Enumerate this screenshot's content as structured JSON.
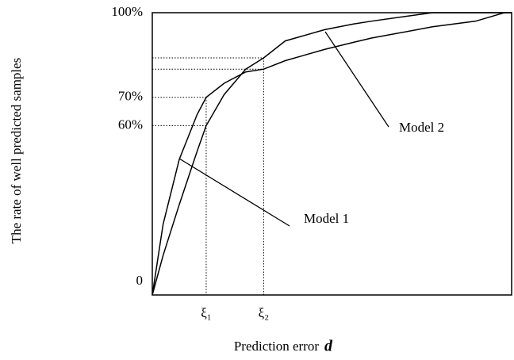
{
  "chart_data": {
    "type": "line",
    "y_label": "The rate of well predicted samples",
    "x_label": "Prediction error",
    "x_symbol": "d",
    "x": [
      0,
      3,
      7.5,
      12.5,
      15,
      20,
      26,
      31,
      37,
      48,
      56,
      61,
      78,
      90,
      98,
      100
    ],
    "series": [
      {
        "name": "Model 1",
        "color": "#000000",
        "values": [
          0,
          25,
          48,
          64,
          70,
          75,
          79,
          80,
          83,
          87,
          89.5,
          91,
          95,
          97,
          100,
          100
        ]
      },
      {
        "name": "Model 2",
        "color": "#000000",
        "values": [
          0,
          14,
          32,
          51,
          60,
          71,
          80,
          84,
          90,
          94,
          96,
          97,
          100,
          100,
          100,
          100
        ]
      }
    ],
    "xlim": [
      0,
      100
    ],
    "ylim": [
      0,
      100
    ],
    "xticks": [
      {
        "value": 15,
        "label": "ξ₁"
      },
      {
        "value": 31,
        "label": "ξ₂"
      }
    ],
    "yticks": [
      {
        "value": 0,
        "label": "0"
      },
      {
        "value": 60,
        "label": "60%"
      },
      {
        "value": 70,
        "label": "70%"
      },
      {
        "value": 100,
        "label": "100%"
      }
    ],
    "grid": false
  }
}
